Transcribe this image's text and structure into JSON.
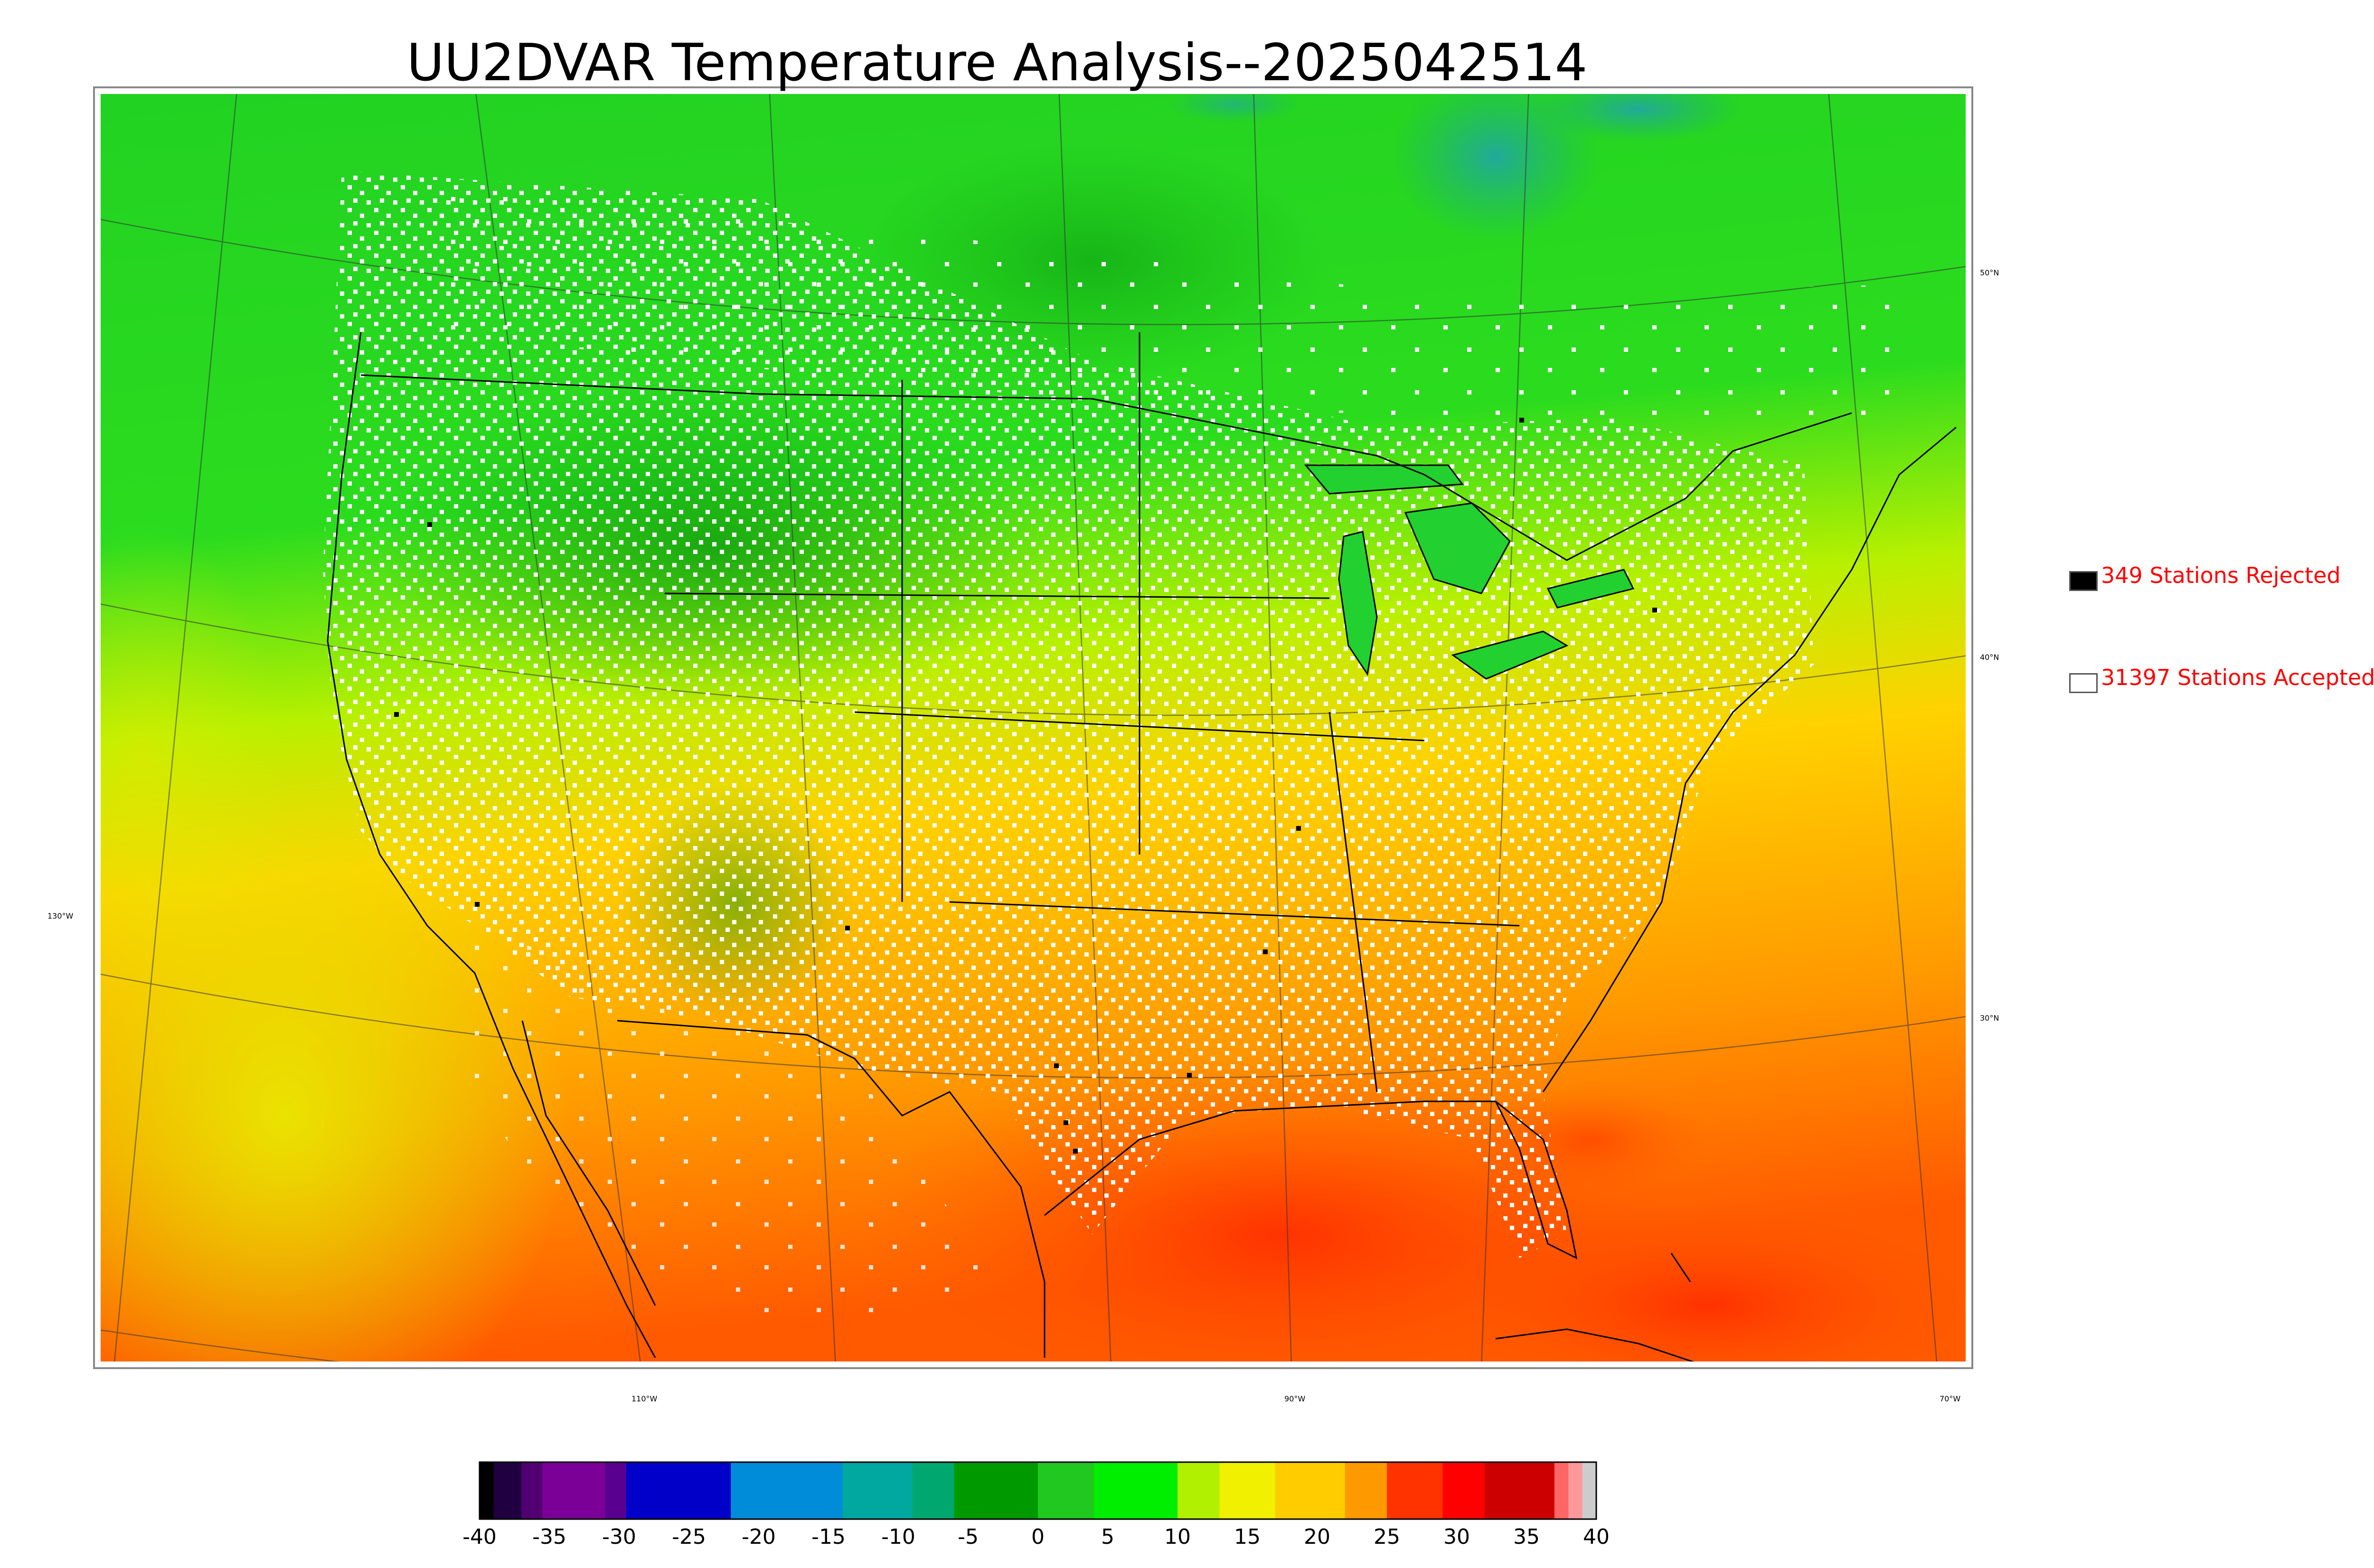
{
  "title": "UU2DVAR Temperature Analysis--2025042514",
  "map": {
    "lat_labels": [
      "50°N",
      "40°N",
      "30°N"
    ],
    "lon_labels_bottom": [
      "110°W",
      "90°W",
      "70°W"
    ],
    "lon_label_left": "130°W"
  },
  "legend": {
    "rejected": {
      "label": "349 Stations Rejected",
      "count": 349,
      "swatch_color": "#000000"
    },
    "accepted": {
      "label": "31397 Stations Accepted",
      "count": 31397,
      "swatch_color": "#ffffff"
    },
    "text_color": "#ff0000"
  },
  "colorbar": {
    "min": -40,
    "max": 40,
    "ticks": [
      "-40",
      "-35",
      "-30",
      "-25",
      "-20",
      "-15",
      "-10",
      "-5",
      "0",
      "5",
      "10",
      "15",
      "20",
      "25",
      "30",
      "35",
      "40"
    ],
    "colors": [
      {
        "from": -40,
        "to": -39,
        "color": "#000000"
      },
      {
        "from": -39,
        "to": -37,
        "color": "#200040"
      },
      {
        "from": -37,
        "to": -35.5,
        "color": "#500070"
      },
      {
        "from": -35.5,
        "to": -31,
        "color": "#7a0098"
      },
      {
        "from": -31,
        "to": -29.5,
        "color": "#5a0090"
      },
      {
        "from": -29.5,
        "to": -22,
        "color": "#0000c8"
      },
      {
        "from": -22,
        "to": -14,
        "color": "#008cd8"
      },
      {
        "from": -14,
        "to": -9,
        "color": "#00a8a0"
      },
      {
        "from": -9,
        "to": -6,
        "color": "#00a870"
      },
      {
        "from": -6,
        "to": 0,
        "color": "#009a00"
      },
      {
        "from": 0,
        "to": 4,
        "color": "#20c820"
      },
      {
        "from": 4,
        "to": 10,
        "color": "#00ee00"
      },
      {
        "from": 10,
        "to": 13,
        "color": "#b0f000"
      },
      {
        "from": 13,
        "to": 17,
        "color": "#f0f000"
      },
      {
        "from": 17,
        "to": 22,
        "color": "#ffcc00"
      },
      {
        "from": 22,
        "to": 25,
        "color": "#ff9900"
      },
      {
        "from": 25,
        "to": 29,
        "color": "#ff3300"
      },
      {
        "from": 29,
        "to": 32,
        "color": "#ff0000"
      },
      {
        "from": 32,
        "to": 37,
        "color": "#cc0000"
      },
      {
        "from": 37,
        "to": 38,
        "color": "#ff6666"
      },
      {
        "from": 38,
        "to": 39,
        "color": "#ff9999"
      },
      {
        "from": 39,
        "to": 40,
        "color": "#cccccc"
      }
    ]
  }
}
